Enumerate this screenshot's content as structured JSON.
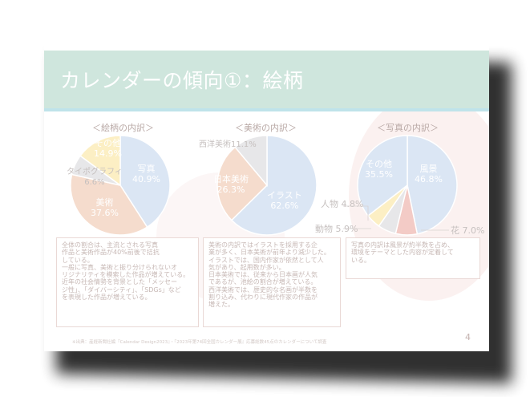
{
  "title": "カレンダーの傾向①：絵柄",
  "page_number": "4",
  "footer": "※出典：産経新聞社編『Calendar Design2023』・『2023年第74回全国カレンダー展』応募総数45点のカレンダーについて調査",
  "colors": {
    "title_bar": "#cfe6dd",
    "blue": "#dbe6f4",
    "orange": "#f5dccd",
    "grey": "#e7e7e9",
    "yellow": "#fcefc4",
    "red": "#f3cbc6"
  },
  "charts": {
    "art": {
      "heading": "＜絵柄の内訳＞",
      "labels": {
        "photo": "写真\n40.9%",
        "fine": "美術\n37.6%",
        "typo": "タイポグラフィ\n6.6%",
        "other": "その他\n14.9%"
      }
    },
    "fine": {
      "heading": "＜美術の内訳＞",
      "labels": {
        "illust": "イラスト\n62.6%",
        "japanese": "日本美術\n26.3%",
        "western": "西洋美術11.1%"
      }
    },
    "photo": {
      "heading": "＜写真の内訳＞",
      "labels": {
        "landscape": "風景\n46.8%",
        "flower": "花 7.0%",
        "animal": "動物 5.9%",
        "person": "人物 4.8%",
        "other": "その他\n35.5%"
      }
    }
  },
  "chart_data": [
    {
      "type": "pie",
      "title": "＜絵柄の内訳＞",
      "categories": [
        "写真",
        "美術",
        "タイポグラフィ",
        "その他"
      ],
      "values": [
        40.9,
        37.6,
        6.6,
        14.9
      ]
    },
    {
      "type": "pie",
      "title": "＜美術の内訳＞",
      "categories": [
        "イラスト",
        "日本美術",
        "西洋美術"
      ],
      "values": [
        62.6,
        26.3,
        11.1
      ]
    },
    {
      "type": "pie",
      "title": "＜写真の内訳＞",
      "categories": [
        "風景",
        "花",
        "動物",
        "人物",
        "その他"
      ],
      "values": [
        46.8,
        7.0,
        5.9,
        4.8,
        35.5
      ]
    }
  ],
  "notes": {
    "art": "全体の割合は、主流とされる写真\n作品と美術作品が40%前後で拮抗\nしている。\n一般に写真、美術と振り分けられないオ\nリジナリティを模索した作品が増えている。\n近年の社会情勢を背景とした「メッセー\nジ性」、「ダイバーシティ」、「SDGs」など\nを表現した作品が増えている。",
    "fine": "美術の内訳ではイラストを採用する企\n業が多く、日本美術が前年より減少した。\nイラストでは、国内作家が依然として人\n気があり、起用数が多い。\n日本美術では、従来から日本画が人気\nであるが、池絵の割合が増えている。\n西洋美術では、歴史的な名画が半数を\n割り込み、代わりに現代作家の作品が\n増えた。",
    "photo": "写真の内訳は風景が約半数を占め、\n環境をテーマとした内容が定着して\nいる。"
  }
}
